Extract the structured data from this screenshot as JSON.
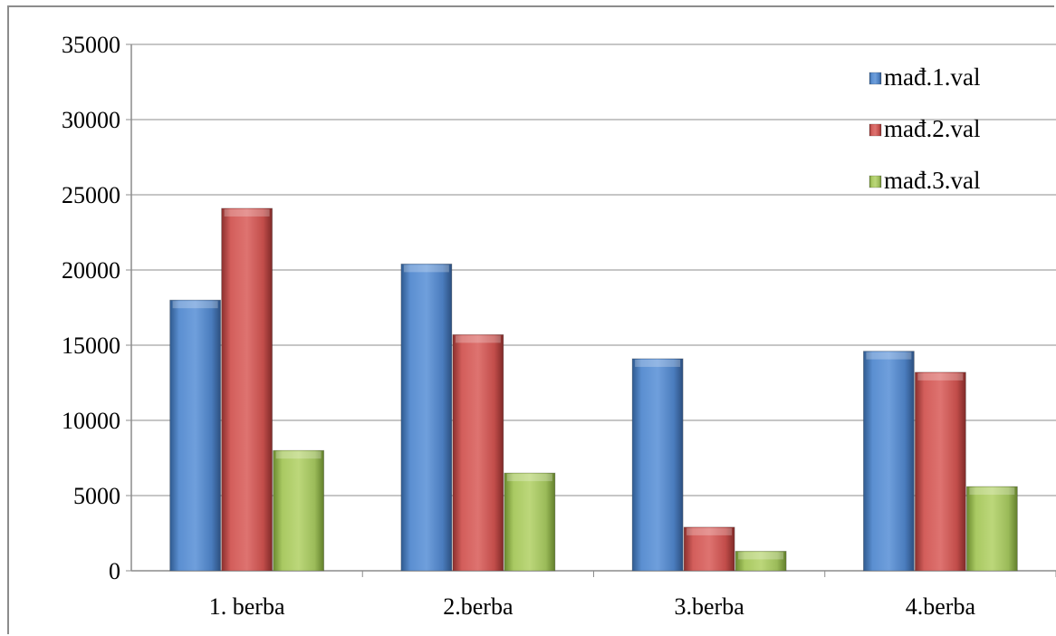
{
  "chart_data": {
    "type": "bar",
    "categories": [
      "1. berba",
      "2.berba",
      "3.berba",
      "4.berba"
    ],
    "series": [
      {
        "name": "mađ.1.val",
        "values": [
          18000,
          20400,
          14100,
          14600
        ],
        "color": "#4f81bd"
      },
      {
        "name": "mađ.2.val",
        "values": [
          24100,
          15700,
          2900,
          13200
        ],
        "color": "#c0504d"
      },
      {
        "name": "mađ.3.val",
        "values": [
          8000,
          6500,
          1300,
          5600
        ],
        "color": "#9bbb59"
      }
    ],
    "yticks": [
      "0",
      "5000",
      "10000",
      "15000",
      "20000",
      "25000",
      "30000",
      "35000"
    ],
    "ylim": [
      0,
      35000
    ],
    "grid": true,
    "legend_position": "top-right"
  }
}
